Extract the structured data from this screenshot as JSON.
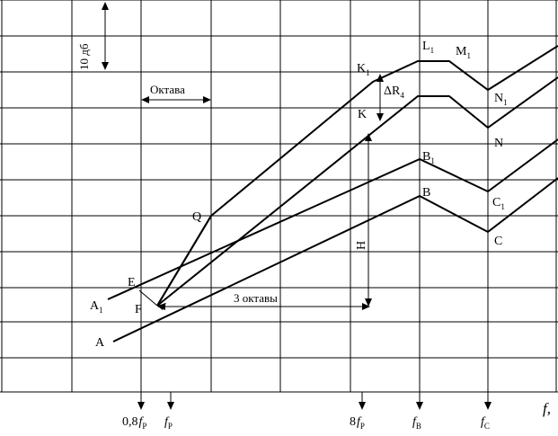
{
  "labels": {
    "ten_db": "10 дб",
    "octave": "Октава",
    "three_octaves": "3 октавы",
    "H": "H",
    "delta_r4": "ΔR",
    "delta_r4_sub": "4",
    "A": "A",
    "A1": "A",
    "A1_sub": "1",
    "E": "E",
    "F": "F",
    "Q": "Q",
    "K": "K",
    "K1": "K",
    "K1_sub": "1",
    "L1": "L",
    "L1_sub": "1",
    "M1": "M",
    "M1_sub": "1",
    "N": "N",
    "N1": "N",
    "N1_sub": "1",
    "B": "B",
    "B1": "B",
    "B1_sub": "1",
    "C": "C",
    "C1": "C",
    "C1_sub": "1"
  },
  "xaxis": {
    "f08": "0,8",
    "f08_var": "f",
    "f08_sub": "P",
    "fp_var": "f",
    "fp_sub": "P",
    "f8_num": "8",
    "f8_var": "f",
    "f8_sub": "P",
    "fb_var": "f",
    "fb_sub": "B",
    "fc_var": "f",
    "fc_sub": "C",
    "f_axis": "f,"
  }
}
